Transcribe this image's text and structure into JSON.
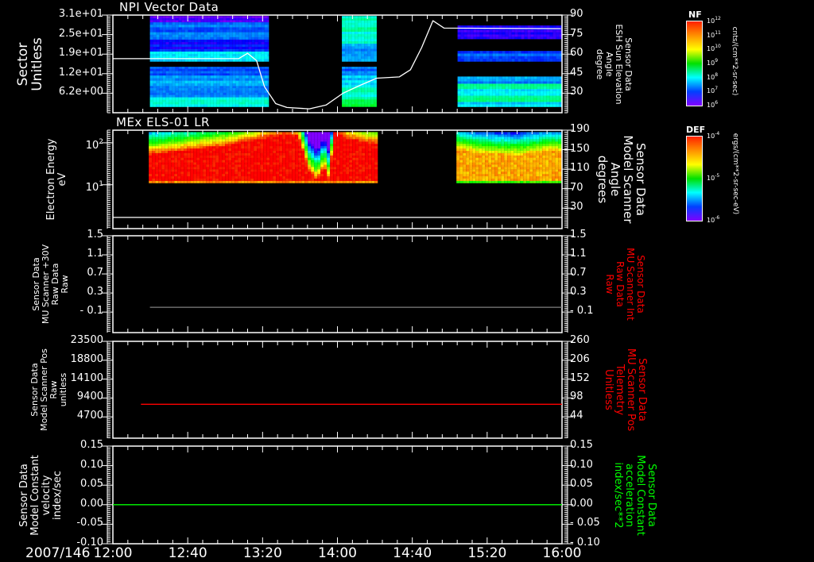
{
  "chart_data": {
    "type": "multi-panel timeseries/spectrogram",
    "date_label": "2007/146",
    "x_axis": {
      "unit": "hours UT",
      "range": [
        12.0,
        16.0
      ],
      "tick_values": [
        12.0,
        12.6667,
        13.3333,
        14.0,
        14.6667,
        15.3333,
        16.0
      ],
      "tick_labels": [
        "12:00",
        "12:40",
        "13:20",
        "14:00",
        "14:40",
        "15:20",
        "16:00"
      ]
    },
    "panels": [
      {
        "title": "NPI Vector Data",
        "left_axis": {
          "label_lines": [
            "Sector",
            "Unitless"
          ],
          "scale": "linear",
          "range": [
            0,
            31
          ],
          "ticks": [
            {
              "value": 31,
              "label": "3.1e+01"
            },
            {
              "value": 24.8,
              "label": "2.5e+01"
            },
            {
              "value": 18.6,
              "label": "1.9e+01"
            },
            {
              "value": 12.4,
              "label": "1.2e+01"
            },
            {
              "value": 6.2,
              "label": "6.2e+00"
            }
          ]
        },
        "right_axis": {
          "label_lines": [
            "Sensor Data",
            "ESH Sun Elevation",
            "Angle",
            "degree"
          ],
          "color": "#ffffff",
          "scale": "linear",
          "range": [
            15,
            90
          ],
          "ticks": [
            {
              "value": 90,
              "label": "90"
            },
            {
              "value": 75,
              "label": "75"
            },
            {
              "value": 60,
              "label": "60"
            },
            {
              "value": 45,
              "label": "45"
            },
            {
              "value": 30,
              "label": "30"
            }
          ]
        },
        "spectrogram": {
          "colorbar": "NF",
          "level_note": "0 = 1e6, 1 = 1e12",
          "blocks": [
            {
              "t": [
                12.33,
                13.39
              ],
              "bands": [
                [
                  28.7,
                  30.7,
                  0.05
                ],
                [
                  23.2,
                  28.7,
                  0.2
                ],
                [
                  19.4,
                  23.2,
                  0.12
                ],
                [
                  16.3,
                  19.4,
                  0.3
                ],
                [
                  11.8,
                  14.6,
                  0.2
                ],
                [
                  8.5,
                  11.8,
                  0.25
                ],
                [
                  4.9,
                  8.5,
                  0.22
                ],
                [
                  1.9,
                  4.9,
                  0.35
                ]
              ]
            },
            {
              "t": [
                14.04,
                14.35
              ],
              "bands": [
                [
                  25.7,
                  30.7,
                  0.4
                ],
                [
                  21.9,
                  25.7,
                  0.35
                ],
                [
                  16.3,
                  21.9,
                  0.25
                ],
                [
                  11.8,
                  14.6,
                  0.2
                ],
                [
                  8.0,
                  11.8,
                  0.3
                ],
                [
                  4.2,
                  8.0,
                  0.38
                ],
                [
                  1.9,
                  4.2,
                  0.5
                ]
              ]
            },
            {
              "t": [
                15.07,
                16.0
              ],
              "bands": [
                [
                  23.4,
                  27.7,
                  0.08
                ],
                [
                  16.3,
                  19.6,
                  0.18
                ],
                [
                  9.2,
                  11.5,
                  0.25
                ],
                [
                  7.5,
                  9.2,
                  0.42
                ],
                [
                  5.4,
                  7.5,
                  0.3
                ],
                [
                  3.4,
                  5.4,
                  0.45
                ],
                [
                  1.9,
                  3.4,
                  0.3
                ]
              ]
            }
          ]
        },
        "series": [
          {
            "name": "ESH Sun Elevation Angle",
            "axis": "right",
            "color": "#ffffff",
            "points": [
              [
                12.0,
                56.5
              ],
              [
                13.12,
                56.5
              ],
              [
                13.2,
                60.7
              ],
              [
                13.28,
                55
              ],
              [
                13.35,
                35
              ],
              [
                13.45,
                22
              ],
              [
                13.55,
                19
              ],
              [
                13.75,
                18
              ],
              [
                13.9,
                21
              ],
              [
                14.05,
                30
              ],
              [
                14.2,
                36
              ],
              [
                14.35,
                41.5
              ],
              [
                14.55,
                42.5
              ],
              [
                14.65,
                48
              ],
              [
                14.75,
                65
              ],
              [
                14.85,
                85.7
              ],
              [
                14.95,
                80
              ],
              [
                15.99,
                79.6
              ]
            ]
          }
        ]
      },
      {
        "title": "MEx ELS-01 LR",
        "left_axis": {
          "label_lines": [
            "Electron Energy",
            "eV"
          ],
          "scale": "log",
          "range": [
            0.9,
            200
          ],
          "ticks": [
            {
              "value": 100,
              "base": "10",
              "exp": "2"
            },
            {
              "value": 10,
              "base": "10",
              "exp": "1"
            }
          ]
        },
        "right_axis": {
          "label_lines": [
            "Sensor Data",
            "Model Scanner",
            "Angle",
            "degrees"
          ],
          "color": "#ffffff",
          "scale": "linear",
          "range": [
            -12,
            190
          ],
          "ticks": [
            {
              "value": 190,
              "label": "190"
            },
            {
              "value": 150,
              "label": "150"
            },
            {
              "value": 110,
              "label": "110"
            },
            {
              "value": 70,
              "label": "70"
            },
            {
              "value": 30,
              "label": "30"
            }
          ]
        },
        "spectrogram": {
          "colorbar": "DEF",
          "energy_range_eV": [
            11,
            180
          ],
          "blocks": [
            {
              "t": [
                12.32,
                14.36
              ],
              "peak_level": 1.0,
              "red_top_eV": [
                [
                  12.32,
                  50
                ],
                [
                  13.0,
                  80
                ],
                [
                  13.5,
                  150
                ],
                [
                  13.65,
                  140
                ],
                [
                  13.75,
                  20
                ],
                [
                  13.82,
                  12
                ],
                [
                  13.88,
                  25
                ],
                [
                  13.93,
                  12
                ],
                [
                  13.97,
                  180
                ],
                [
                  14.1,
                  120
                ],
                [
                  14.36,
                  90
                ]
              ]
            },
            {
              "t": [
                15.06,
                16.0
              ],
              "peak_level": 0.85,
              "red_top_eV": [
                [
                  15.06,
                  70
                ],
                [
                  15.3,
                  55
                ],
                [
                  15.6,
                  50
                ],
                [
                  15.9,
                  65
                ],
                [
                  16.0,
                  60
                ]
              ]
            }
          ]
        },
        "series": [
          {
            "name": "Model Scanner Angle",
            "axis": "right",
            "color": "#ffffff",
            "points": [
              [
                12.0,
                11
              ],
              [
                16.0,
                11
              ]
            ]
          }
        ]
      },
      {
        "left_axis": {
          "label_lines": [
            "Sensor Data",
            "MU Scanner +30V",
            "Raw Data",
            "Raw"
          ],
          "scale": "linear",
          "range": [
            -0.53,
            1.5
          ],
          "ticks": [
            {
              "value": 1.5,
              "label": "1.5"
            },
            {
              "value": 1.1,
              "label": "1.1"
            },
            {
              "value": 0.7,
              "label": "0.7"
            },
            {
              "value": 0.3,
              "label": "0.3"
            },
            {
              "value": -0.1,
              "label": "- 0.1"
            }
          ]
        },
        "right_axis": {
          "label_lines": [
            "Sensor Data",
            "MU Scanner Int",
            "Raw Data",
            "Raw"
          ],
          "color": "#ff0000",
          "scale": "linear",
          "range": [
            -0.53,
            1.5
          ],
          "ticks": [
            {
              "value": 1.5,
              "label": "1.5"
            },
            {
              "value": 1.1,
              "label": "1.1"
            },
            {
              "value": 0.7,
              "label": "0.7"
            },
            {
              "value": 0.3,
              "label": "0.3"
            },
            {
              "value": -0.1,
              "label": "- 0.1"
            }
          ]
        },
        "series": [
          {
            "name": "MU Scanner +30V",
            "axis": "left",
            "color": "#808080",
            "points": [
              [
                12.33,
                0.0
              ],
              [
                16.0,
                0.0
              ]
            ]
          }
        ]
      },
      {
        "left_axis": {
          "label_lines": [
            "Sensor Data",
            "Model Scanner Pos",
            "Raw",
            "unitless"
          ],
          "scale": "linear",
          "range": [
            -590,
            23500
          ],
          "ticks": [
            {
              "value": 23500,
              "label": "23500"
            },
            {
              "value": 18800,
              "label": "18800"
            },
            {
              "value": 14100,
              "label": "14100"
            },
            {
              "value": 9400,
              "label": "9400"
            },
            {
              "value": 4700,
              "label": "4700"
            }
          ]
        },
        "right_axis": {
          "label_lines": [
            "Sensor Data",
            "MU Scanner Pos",
            "Telemetry",
            "Unitless"
          ],
          "color": "#ff0000",
          "scale": "linear",
          "range": [
            -17,
            260
          ],
          "ticks": [
            {
              "value": 260,
              "label": "260"
            },
            {
              "value": 206,
              "label": "206"
            },
            {
              "value": 152,
              "label": "152"
            },
            {
              "value": 98,
              "label": "98"
            },
            {
              "value": 44,
              "label": "44"
            }
          ]
        },
        "series": [
          {
            "name": "MU Scanner Pos Telemetry",
            "axis": "right",
            "color": "#ff0000",
            "points": [
              [
                12.25,
                80
              ],
              [
                16.0,
                80
              ]
            ]
          }
        ]
      },
      {
        "left_axis": {
          "label_lines": [
            "Sensor Data",
            "Model Constant",
            "velocity",
            "index/sec"
          ],
          "scale": "linear",
          "range": [
            -0.1,
            0.15
          ],
          "ticks": [
            {
              "value": 0.15,
              "label": "0.15"
            },
            {
              "value": 0.1,
              "label": "0.10"
            },
            {
              "value": 0.05,
              "label": "0.05"
            },
            {
              "value": 0.0,
              "label": "0.00"
            },
            {
              "value": -0.05,
              "label": "-0.05"
            },
            {
              "value": -0.1,
              "label": "-0.10"
            }
          ]
        },
        "right_axis": {
          "label_lines": [
            "Sensor Data",
            "Model Constant",
            "acceleration",
            "index/sec**2"
          ],
          "color": "#00ff00",
          "scale": "linear",
          "range": [
            -0.1,
            0.15
          ],
          "ticks": [
            {
              "value": 0.15,
              "label": "0.15"
            },
            {
              "value": 0.1,
              "label": "0.10"
            },
            {
              "value": 0.05,
              "label": "0.05"
            },
            {
              "value": 0.0,
              "label": "0.00"
            },
            {
              "value": -0.05,
              "label": "- 0.05"
            },
            {
              "value": -0.1,
              "label": "- 0.10"
            }
          ]
        },
        "series": [
          {
            "name": "Model Constant acceleration",
            "axis": "right",
            "color": "#00ff00",
            "points": [
              [
                12.0,
                0.0
              ],
              [
                16.0,
                0.0
              ]
            ]
          }
        ]
      }
    ],
    "colorbars": [
      {
        "title": "NF",
        "units": "cnts/(cm**2-sr-sec)",
        "ticks": [
          {
            "base": "10",
            "exp": "12"
          },
          {
            "base": "10",
            "exp": "11"
          },
          {
            "base": "10",
            "exp": "10"
          },
          {
            "base": "10",
            "exp": "9"
          },
          {
            "base": "10",
            "exp": "8"
          },
          {
            "base": "10",
            "exp": "7"
          },
          {
            "base": "10",
            "exp": "6"
          }
        ]
      },
      {
        "title": "DEF",
        "units": "ergs/(cm**2-sr-sec-eV)",
        "ticks": [
          {
            "base": "10",
            "exp": "-4"
          },
          {
            "base": "10",
            "exp": "-5"
          },
          {
            "base": "10",
            "exp": "-6"
          }
        ]
      }
    ]
  }
}
